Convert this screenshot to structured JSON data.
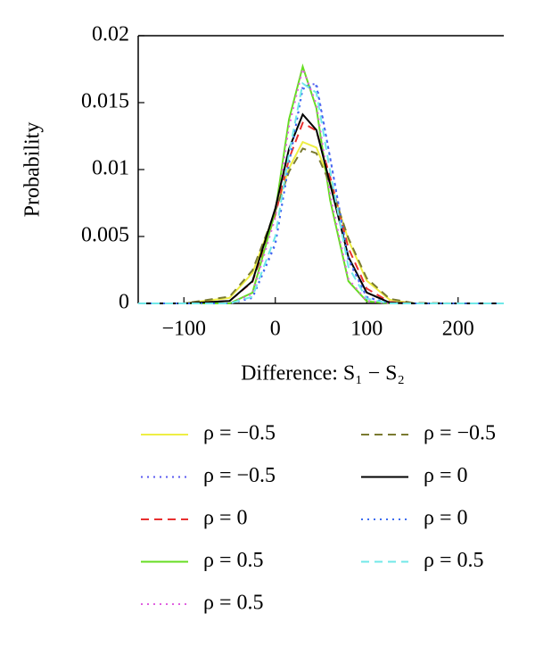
{
  "chart_data": {
    "type": "line",
    "xlabel": "Difference: S₁ − S₂",
    "ylabel": "Probability",
    "x": [
      -150,
      -100,
      -50,
      -25,
      0,
      15,
      30,
      45,
      60,
      80,
      100,
      125,
      150,
      200,
      250
    ],
    "xlim": [
      -150,
      250
    ],
    "xticks": [
      {
        "value": -100,
        "label": "−100"
      },
      0,
      100,
      200
    ],
    "ylim": [
      0,
      0.02
    ],
    "yticks": [
      0,
      0.005,
      0.01,
      0.015,
      0.02
    ],
    "series": [
      {
        "name": "ρ = −0.5",
        "color": "#eeee44",
        "dash": "solid",
        "values": [
          0,
          0,
          0.00041,
          0.00227,
          0.00688,
          0.0101,
          0.01206,
          0.01164,
          0.00911,
          0.00473,
          0.0017,
          0.00028,
          0,
          0,
          0
        ]
      },
      {
        "name": "ρ = −0.5",
        "color": "#5a5af0",
        "dash": "dotted",
        "values": [
          0,
          0,
          0,
          0.0004,
          0.00439,
          0.01044,
          0.01619,
          0.01643,
          0.01088,
          0.00325,
          0.00046,
          0,
          0,
          0,
          0
        ]
      },
      {
        "name": "ρ = 0",
        "color": "#e83030",
        "dash": "dashed",
        "values": [
          0,
          0,
          0.00019,
          0.00161,
          0.00661,
          0.0108,
          0.01349,
          0.0129,
          0.00945,
          0.00413,
          0.00111,
          0.00011,
          0,
          0,
          0
        ]
      },
      {
        "name": "ρ = 0.5",
        "color": "#66dd22",
        "dash": "solid",
        "values": [
          0,
          0,
          0,
          0.0008,
          0.00685,
          0.01375,
          0.01769,
          0.01458,
          0.00771,
          0.00166,
          0.00016,
          0,
          0,
          0,
          0
        ]
      },
      {
        "name": "ρ = 0.5",
        "color": "#e060e0",
        "dash": "dotted",
        "values": [
          0,
          0,
          0,
          0.0007,
          0.0064,
          0.01322,
          0.01753,
          0.01489,
          0.00812,
          0.00182,
          0.00018,
          0,
          0,
          0,
          0
        ]
      },
      {
        "name": "ρ = −0.5",
        "color": "#7a7a30",
        "dash": "dashed",
        "values": [
          0,
          0,
          0.00051,
          0.00247,
          0.00689,
          0.00984,
          0.01157,
          0.01121,
          0.00893,
          0.00487,
          0.00188,
          0.00035,
          4e-05,
          0,
          0
        ]
      },
      {
        "name": "ρ = 0",
        "color": "#000000",
        "dash": "solid",
        "values": [
          0,
          0,
          0.00018,
          0.00166,
          0.0071,
          0.01155,
          0.01412,
          0.01295,
          0.00892,
          0.00347,
          0.00081,
          6e-05,
          0,
          0,
          0
        ]
      },
      {
        "name": "ρ = 0",
        "color": "#3c6cf0",
        "dash": "dotted",
        "values": [
          0,
          0,
          0,
          0.00044,
          0.00449,
          0.01044,
          0.01603,
          0.01625,
          0.01088,
          0.00336,
          0.00049,
          0,
          0,
          0,
          0
        ]
      },
      {
        "name": "ρ = 0.5",
        "color": "#70e8e8",
        "dash": "dashed",
        "values": [
          0,
          0,
          0,
          0.0005,
          0.005,
          0.0112,
          0.01643,
          0.01574,
          0.00987,
          0.00273,
          0.00036,
          0,
          0,
          0,
          0
        ]
      }
    ]
  }
}
